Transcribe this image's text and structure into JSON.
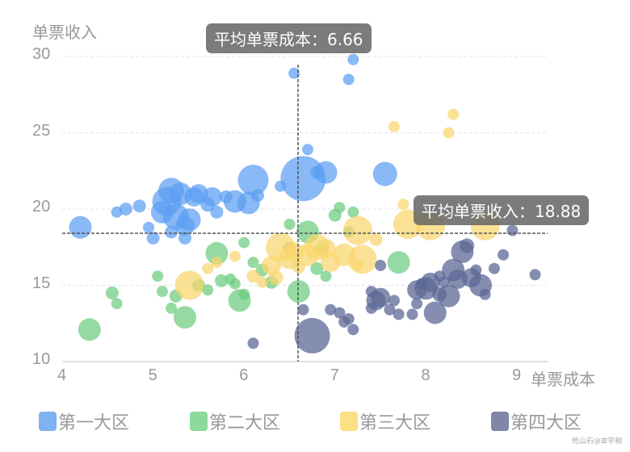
{
  "chart_data": {
    "type": "scatter",
    "title": "",
    "xlabel": "单票成本",
    "ylabel": "单票收入",
    "xlim": [
      4,
      9
    ],
    "ylim": [
      10,
      30
    ],
    "xticks": [
      "4",
      "5",
      "6",
      "7",
      "8",
      "9"
    ],
    "yticks": [
      "10",
      "15",
      "20",
      "25",
      "30"
    ],
    "grid": "horizontal dashed",
    "legend_position": "bottom",
    "mark_lines": {
      "x_average": {
        "label": "平均单票成本：6.66",
        "value": 6.66
      },
      "y_average": {
        "label": "平均单票收入：18.88",
        "value": 18.88
      }
    },
    "series": [
      {
        "name": "第一大区",
        "color": "#5b9ef3",
        "points": [
          [
            4.2,
            18.8,
            14
          ],
          [
            4.6,
            19.8,
            7
          ],
          [
            4.7,
            20.0,
            8
          ],
          [
            4.85,
            20.2,
            8
          ],
          [
            4.95,
            18.8,
            7
          ],
          [
            5.1,
            19.8,
            14
          ],
          [
            5.2,
            21.2,
            16
          ],
          [
            5.15,
            20.5,
            18
          ],
          [
            5.3,
            21.0,
            14
          ],
          [
            5.25,
            19.5,
            16
          ],
          [
            5.35,
            18.9,
            12
          ],
          [
            5.4,
            19.3,
            14
          ],
          [
            5.45,
            20.8,
            12
          ],
          [
            5.5,
            21.0,
            12
          ],
          [
            5.6,
            20.3,
            9
          ],
          [
            5.65,
            20.8,
            12
          ],
          [
            5.7,
            19.8,
            8
          ],
          [
            5.8,
            20.8,
            8
          ],
          [
            5.9,
            20.5,
            14
          ],
          [
            6.1,
            21.9,
            19
          ],
          [
            6.05,
            20.4,
            14
          ],
          [
            6.15,
            20.9,
            8
          ],
          [
            6.4,
            21.5,
            7
          ],
          [
            6.65,
            22.0,
            28
          ],
          [
            6.7,
            23.9,
            7
          ],
          [
            6.8,
            22.4,
            8
          ],
          [
            6.9,
            22.4,
            14
          ],
          [
            7.55,
            22.3,
            15
          ],
          [
            6.55,
            28.9,
            7
          ],
          [
            7.2,
            29.8,
            7
          ],
          [
            7.15,
            28.5,
            7
          ],
          [
            5.35,
            18.1,
            8
          ],
          [
            5.2,
            18.5,
            8
          ],
          [
            5.0,
            18.1,
            8
          ]
        ]
      },
      {
        "name": "第二大区",
        "color": "#6ccc80",
        "points": [
          [
            4.3,
            12.1,
            14
          ],
          [
            4.55,
            14.5,
            8
          ],
          [
            4.6,
            13.8,
            7
          ],
          [
            5.05,
            15.6,
            7
          ],
          [
            5.1,
            14.6,
            7
          ],
          [
            5.2,
            13.5,
            7
          ],
          [
            5.25,
            14.3,
            8
          ],
          [
            5.35,
            12.9,
            14
          ],
          [
            5.5,
            15.0,
            8
          ],
          [
            5.6,
            14.7,
            7
          ],
          [
            5.7,
            17.1,
            14
          ],
          [
            5.75,
            15.3,
            8
          ],
          [
            5.85,
            15.4,
            7
          ],
          [
            5.9,
            15.1,
            7
          ],
          [
            5.95,
            14.0,
            14
          ],
          [
            6.0,
            14.4,
            7
          ],
          [
            6.0,
            17.8,
            7
          ],
          [
            6.1,
            16.5,
            7
          ],
          [
            6.2,
            16.0,
            8
          ],
          [
            6.3,
            15.2,
            8
          ],
          [
            6.5,
            19.0,
            7
          ],
          [
            6.6,
            14.6,
            14
          ],
          [
            6.7,
            18.5,
            14
          ],
          [
            6.8,
            16.1,
            8
          ],
          [
            6.9,
            15.6,
            7
          ],
          [
            7.0,
            19.6,
            8
          ],
          [
            7.05,
            20.1,
            7
          ],
          [
            7.15,
            18.5,
            7
          ],
          [
            7.2,
            19.8,
            7
          ],
          [
            7.7,
            16.5,
            14
          ],
          [
            6.5,
            17.4,
            8
          ],
          [
            6.85,
            17.4,
            8
          ]
        ]
      },
      {
        "name": "第三大区",
        "color": "#f9d66c",
        "points": [
          [
            5.4,
            15.0,
            18
          ],
          [
            5.6,
            16.1,
            7
          ],
          [
            5.7,
            16.5,
            7
          ],
          [
            5.9,
            16.9,
            7
          ],
          [
            6.1,
            15.6,
            8
          ],
          [
            6.2,
            15.2,
            7
          ],
          [
            6.3,
            16.3,
            12
          ],
          [
            6.4,
            17.5,
            18
          ],
          [
            6.5,
            16.8,
            14
          ],
          [
            6.55,
            17.2,
            12
          ],
          [
            6.6,
            16.2,
            8
          ],
          [
            6.7,
            17.0,
            14
          ],
          [
            6.8,
            17.5,
            16
          ],
          [
            6.9,
            17.4,
            12
          ],
          [
            6.95,
            16.5,
            12
          ],
          [
            7.1,
            17.0,
            14
          ],
          [
            7.25,
            18.6,
            18
          ],
          [
            7.3,
            16.7,
            18
          ],
          [
            7.45,
            18.0,
            8
          ],
          [
            7.8,
            19.0,
            18
          ],
          [
            7.75,
            20.3,
            7
          ],
          [
            8.05,
            18.9,
            18
          ],
          [
            8.65,
            18.9,
            18
          ],
          [
            7.65,
            25.4,
            7
          ],
          [
            8.25,
            25.0,
            7
          ],
          [
            8.3,
            26.2,
            7
          ],
          [
            7.25,
            16.3,
            7
          ],
          [
            6.35,
            15.5,
            9
          ]
        ]
      },
      {
        "name": "第四大区",
        "color": "#5c6896",
        "points": [
          [
            6.1,
            11.2,
            7
          ],
          [
            6.75,
            11.7,
            22
          ],
          [
            6.65,
            13.4,
            7
          ],
          [
            6.95,
            13.4,
            7
          ],
          [
            7.05,
            13.2,
            7
          ],
          [
            7.15,
            12.8,
            7
          ],
          [
            7.2,
            12.1,
            7
          ],
          [
            7.1,
            12.6,
            7
          ],
          [
            7.4,
            13.5,
            7
          ],
          [
            7.45,
            14.0,
            12
          ],
          [
            7.5,
            14.2,
            12
          ],
          [
            7.6,
            13.4,
            7
          ],
          [
            7.65,
            14.0,
            7
          ],
          [
            7.7,
            13.1,
            7
          ],
          [
            7.85,
            13.1,
            7
          ],
          [
            7.9,
            13.8,
            7
          ],
          [
            7.95,
            15.1,
            7
          ],
          [
            7.9,
            14.7,
            12
          ],
          [
            8.0,
            14.8,
            14
          ],
          [
            8.05,
            15.2,
            12
          ],
          [
            8.1,
            13.2,
            14
          ],
          [
            8.15,
            15.6,
            7
          ],
          [
            8.2,
            15.2,
            7
          ],
          [
            8.25,
            14.3,
            14
          ],
          [
            8.3,
            16.0,
            14
          ],
          [
            8.35,
            15.4,
            12
          ],
          [
            8.4,
            17.2,
            14
          ],
          [
            8.45,
            17.6,
            9
          ],
          [
            8.5,
            15.5,
            12
          ],
          [
            8.55,
            16.0,
            7
          ],
          [
            8.6,
            15.0,
            14
          ],
          [
            8.65,
            14.4,
            7
          ],
          [
            8.75,
            16.1,
            7
          ],
          [
            8.85,
            17.0,
            7
          ],
          [
            8.95,
            18.6,
            7
          ],
          [
            9.2,
            15.7,
            7
          ],
          [
            7.5,
            16.3,
            7
          ],
          [
            8.15,
            14.4,
            9
          ],
          [
            7.4,
            14.6,
            7
          ]
        ]
      }
    ]
  },
  "axis": {
    "y_title": "单票收入",
    "x_title": "单票成本",
    "y_ticks": [
      "30",
      "25",
      "20",
      "15",
      "10"
    ],
    "x_ticks": [
      "4",
      "5",
      "6",
      "7",
      "8",
      "9"
    ]
  },
  "tooltips": {
    "x_avg": "平均单票成本：6.66",
    "y_avg": "平均单票收入：18.88"
  },
  "legend": [
    {
      "label": "第一大区",
      "color": "#7eb2f1"
    },
    {
      "label": "第二大区",
      "color": "#8dd99c"
    },
    {
      "label": "第三大区",
      "color": "#fbe085"
    },
    {
      "label": "第四大区",
      "color": "#8086a8"
    }
  ],
  "watermark": "他山石@𝌆字相"
}
